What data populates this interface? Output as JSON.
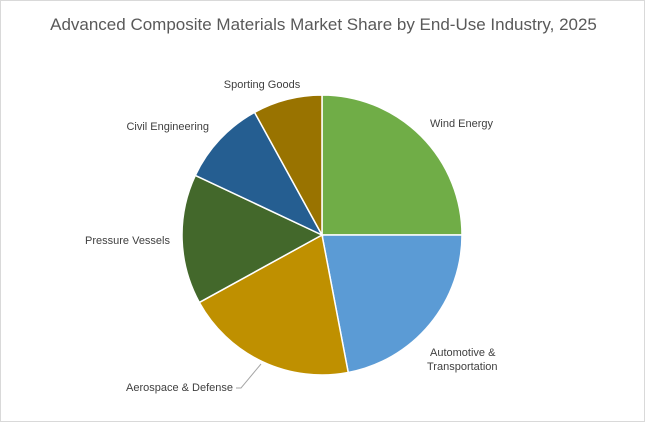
{
  "chart_data": {
    "type": "pie",
    "title": "Advanced Composite Materials Market Share by End-Use Industry, 2025",
    "slices": [
      {
        "label": "Wind Energy",
        "value": 25,
        "color": "#70ad47"
      },
      {
        "label": "Automotive & Transportation",
        "value": 22,
        "color": "#5b9bd5"
      },
      {
        "label": "Aerospace & Defense",
        "value": 20,
        "color": "#bf9000"
      },
      {
        "label": "Pressure Vessels",
        "value": 15,
        "color": "#43682b"
      },
      {
        "label": "Civil Engineering",
        "value": 10,
        "color": "#255e91"
      },
      {
        "label": "Sporting Goods",
        "value": 8,
        "color": "#997300"
      }
    ],
    "start_angle": "12 o'clock",
    "direction": "clockwise",
    "legend": "none"
  }
}
